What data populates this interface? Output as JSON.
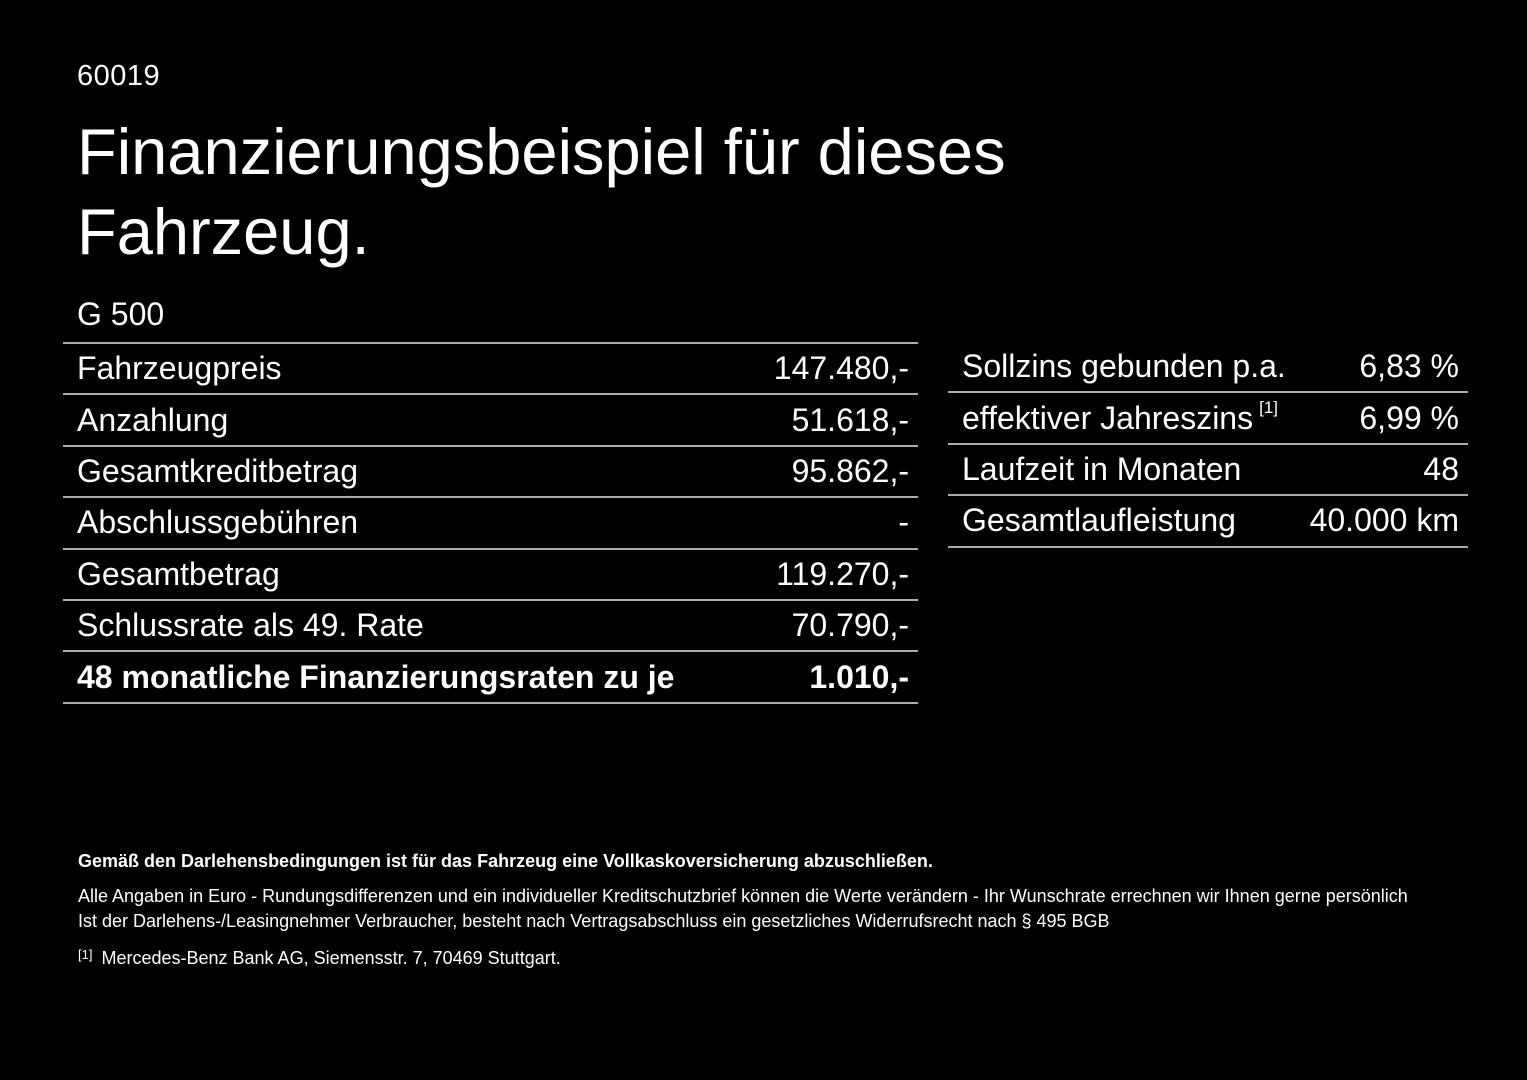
{
  "page": {
    "reference_number": "60019",
    "title": "Finanzierungsbeispiel für dieses Fahrzeug.",
    "model": "G 500"
  },
  "colors": {
    "background": "#000000",
    "text": "#ffffff",
    "divider": "#ababab"
  },
  "tables": {
    "left": {
      "rows": [
        {
          "label": "Fahrzeugpreis",
          "value": "147.480,-"
        },
        {
          "label": "Anzahlung",
          "value": "51.618,-"
        },
        {
          "label": "Gesamtkreditbetrag",
          "value": "95.862,-"
        },
        {
          "label": "Abschlussgebühren",
          "value": "-"
        },
        {
          "label": "Gesamtbetrag",
          "value": "119.270,-"
        },
        {
          "label": "Schlussrate als 49. Rate",
          "value": "70.790,-"
        },
        {
          "label": "48 monatliche Finanzierungsraten zu je",
          "value": "1.010,-"
        }
      ]
    },
    "right": {
      "rows": [
        {
          "label": "Sollzins gebunden p.a.",
          "value": "6,83 %"
        },
        {
          "label": "effektiver Jahreszins",
          "sup": "[1]",
          "value": "6,99 %"
        },
        {
          "label": "Laufzeit in Monaten",
          "value": "48"
        },
        {
          "label": "Gesamtlaufleistung",
          "value": "40.000 km"
        }
      ]
    }
  },
  "footer": {
    "insurance_note": "Gemäß den Darlehensbedingungen ist für das Fahrzeug eine Vollkaskoversicherung abzuschließen.",
    "values_note": "Alle Angaben in Euro - Rundungsdifferenzen und ein individueller Kreditschutzbrief können die Werte verändern - Ihr Wunschrate errechnen wir Ihnen gerne persönlich",
    "withdrawal_note": "Ist der Darlehens-/Leasingnehmer Verbraucher, besteht nach Vertragsabschluss ein gesetzliches Widerrufsrecht nach § 495 BGB",
    "footnote_marker": "[1]",
    "footnote_text": "Mercedes-Benz Bank AG, Siemensstr. 7, 70469 Stuttgart."
  }
}
